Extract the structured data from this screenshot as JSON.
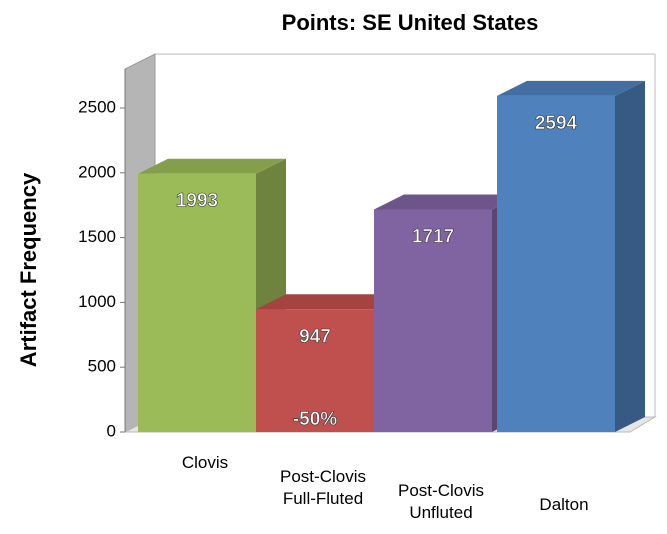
{
  "chart_data": {
    "type": "bar3d",
    "title": "Points: SE United States",
    "y_label": "Artifact Frequency",
    "categories": [
      "Clovis",
      "Post-Clovis Full-Fluted",
      "Post-Clovis Unfluted",
      "Dalton"
    ],
    "values": [
      1993,
      947,
      1717,
      2594
    ],
    "colors": [
      "#9bbb59",
      "#c0504d",
      "#8064a2",
      "#4f81bd"
    ],
    "annotation": "-50%",
    "ylim": [
      0,
      2800
    ],
    "yticks": [
      0,
      500,
      1000,
      1500,
      2000,
      2500
    ]
  }
}
